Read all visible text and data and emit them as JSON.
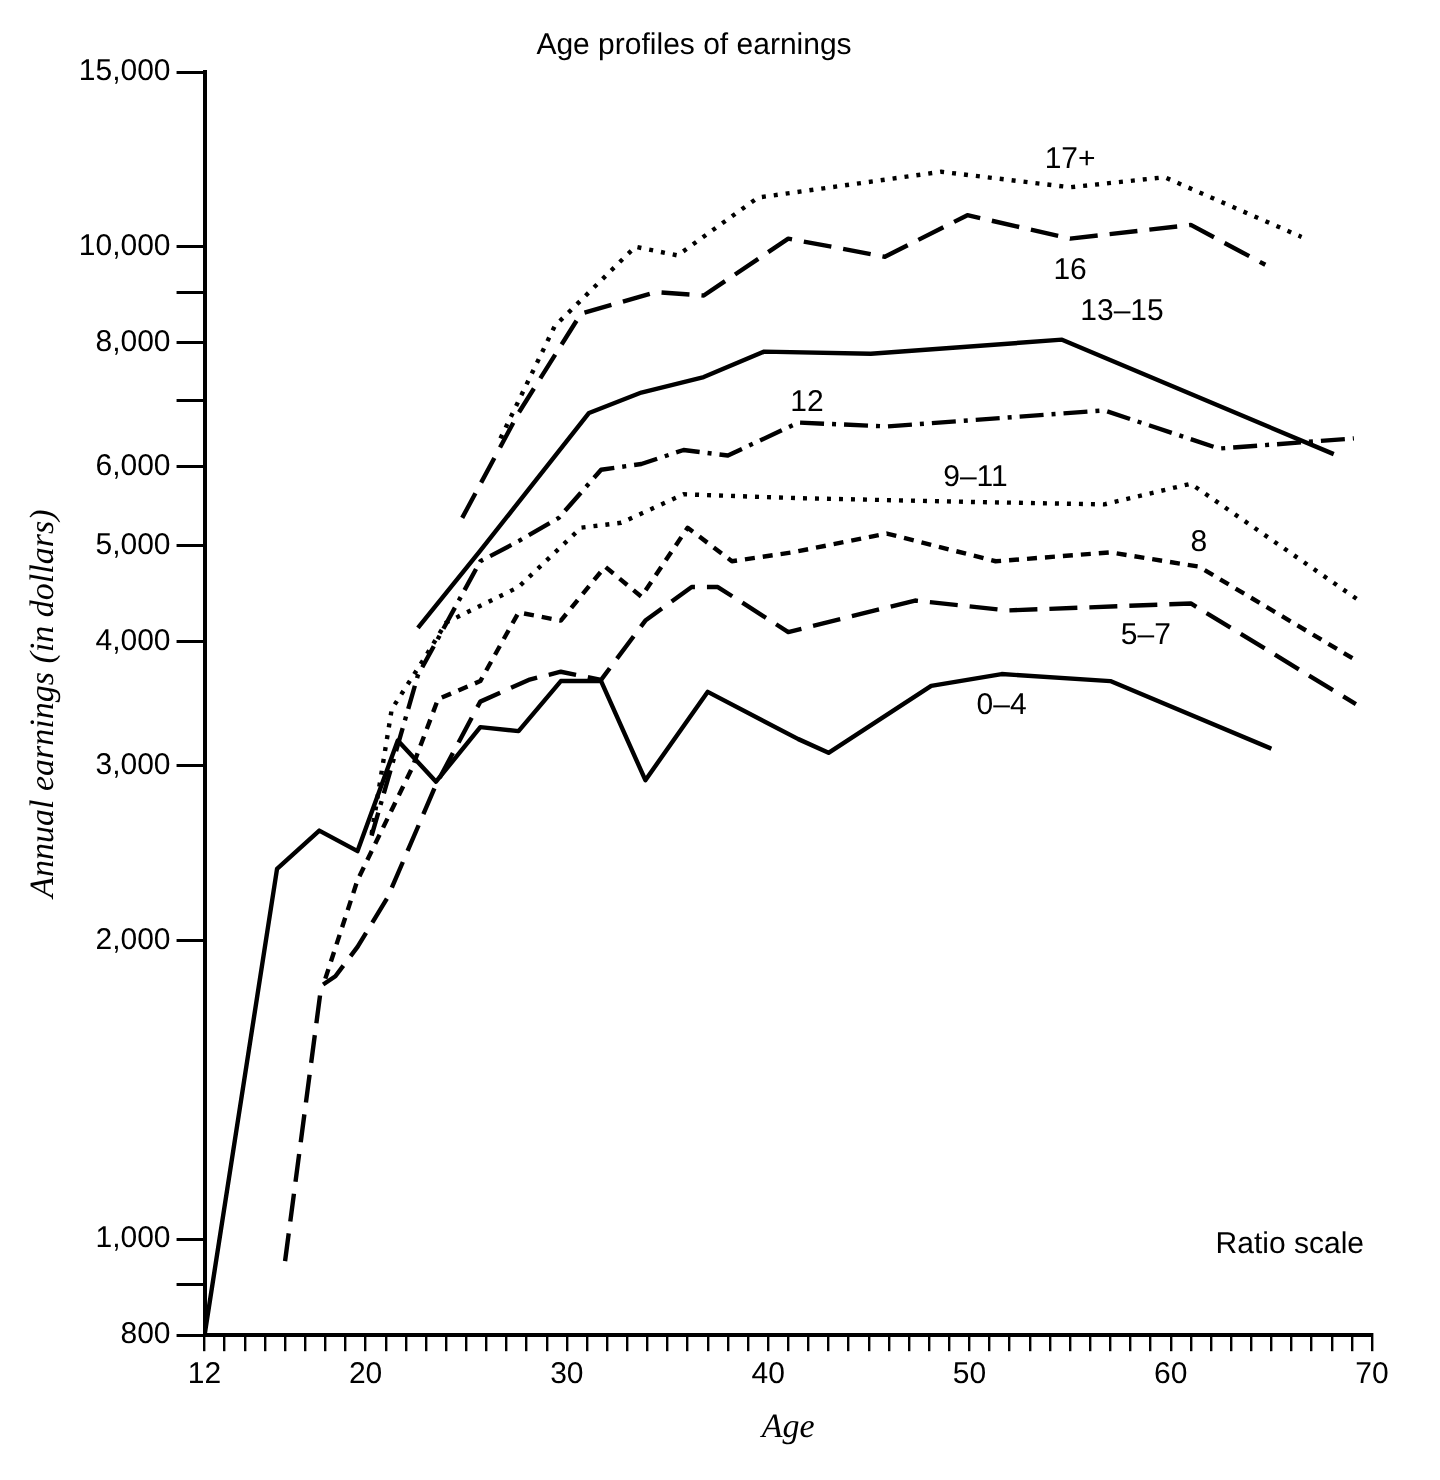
{
  "chart_data": {
    "type": "line",
    "title": "Age profiles of earnings",
    "xlabel": "Age",
    "ylabel": "Annual earnings (in dollars)",
    "annotations": [
      "Ratio scale"
    ],
    "log": "y",
    "grid": false,
    "legend": false,
    "marker": "none",
    "xlim": [
      12,
      70
    ],
    "xticks": [
      12,
      {
        "value": 13,
        "label": null
      },
      {
        "value": 14,
        "label": null
      },
      {
        "value": 15,
        "label": null
      },
      {
        "value": 16,
        "label": null
      },
      {
        "value": 17,
        "label": null
      },
      {
        "value": 18,
        "label": null
      },
      {
        "value": 19,
        "label": null
      },
      20,
      {
        "value": 21,
        "label": null
      },
      {
        "value": 22,
        "label": null
      },
      {
        "value": 23,
        "label": null
      },
      {
        "value": 24,
        "label": null
      },
      {
        "value": 25,
        "label": null
      },
      {
        "value": 26,
        "label": null
      },
      {
        "value": 27,
        "label": null
      },
      {
        "value": 28,
        "label": null
      },
      {
        "value": 29,
        "label": null
      },
      30,
      {
        "value": 31,
        "label": null
      },
      {
        "value": 32,
        "label": null
      },
      {
        "value": 33,
        "label": null
      },
      {
        "value": 34,
        "label": null
      },
      {
        "value": 35,
        "label": null
      },
      {
        "value": 36,
        "label": null
      },
      {
        "value": 37,
        "label": null
      },
      {
        "value": 38,
        "label": null
      },
      {
        "value": 39,
        "label": null
      },
      40,
      {
        "value": 41,
        "label": null
      },
      {
        "value": 42,
        "label": null
      },
      {
        "value": 43,
        "label": null
      },
      {
        "value": 44,
        "label": null
      },
      {
        "value": 45,
        "label": null
      },
      {
        "value": 46,
        "label": null
      },
      {
        "value": 47,
        "label": null
      },
      {
        "value": 48,
        "label": null
      },
      {
        "value": 49,
        "label": null
      },
      50,
      {
        "value": 51,
        "label": null
      },
      {
        "value": 52,
        "label": null
      },
      {
        "value": 53,
        "label": null
      },
      {
        "value": 54,
        "label": null
      },
      {
        "value": 55,
        "label": null
      },
      {
        "value": 56,
        "label": null
      },
      {
        "value": 57,
        "label": null
      },
      {
        "value": 58,
        "label": null
      },
      {
        "value": 59,
        "label": null
      },
      60,
      {
        "value": 61,
        "label": null
      },
      {
        "value": 62,
        "label": null
      },
      {
        "value": 63,
        "label": null
      },
      {
        "value": 64,
        "label": null
      },
      {
        "value": 65,
        "label": null
      },
      {
        "value": 66,
        "label": null
      },
      {
        "value": 67,
        "label": null
      },
      {
        "value": 68,
        "label": null
      },
      {
        "value": 69,
        "label": null
      },
      70
    ],
    "ylim": [
      800,
      15000
    ],
    "yticks": [
      {
        "value": 800,
        "label": "800"
      },
      {
        "value": 900,
        "label": null
      },
      {
        "value": 1000,
        "label": "1,000"
      },
      {
        "value": 2000,
        "label": "2,000"
      },
      {
        "value": 3000,
        "label": "3,000"
      },
      {
        "value": 4000,
        "label": "4,000"
      },
      {
        "value": 5000,
        "label": "5,000"
      },
      {
        "value": 6000,
        "label": "6,000"
      },
      {
        "value": 7000,
        "label": null
      },
      {
        "value": 8000,
        "label": "8,000"
      },
      {
        "value": 9000,
        "label": null
      },
      {
        "value": 10000,
        "label": "10,000"
      },
      {
        "value": 15000,
        "label": "15,000"
      }
    ],
    "series": [
      {
        "name": "0–4",
        "color": "#000000",
        "line_style": "solid",
        "x": [
          12,
          15.6,
          17.7,
          19.6,
          21.6,
          23.5,
          25.7,
          27.6,
          29.7,
          31.7,
          33.9,
          37,
          41.5,
          43,
          48.1,
          51.6,
          57,
          65
        ],
        "values": [
          800,
          2360,
          2580,
          2460,
          3180,
          2890,
          3280,
          3250,
          3650,
          3650,
          2900,
          3560,
          3190,
          3090,
          3610,
          3710,
          3650,
          3120
        ]
      },
      {
        "name": "5–7",
        "color": "#000000",
        "line_style": "dashed",
        "x": [
          16,
          17.8,
          18.5,
          19.6,
          21.1,
          23.5,
          25.7,
          28.1,
          29.7,
          31.7,
          33.9,
          36.2,
          37.5,
          41,
          47.3,
          51.9,
          61,
          69.2
        ],
        "values": [
          950,
          1800,
          1840,
          1970,
          2210,
          2870,
          3480,
          3660,
          3730,
          3660,
          4200,
          4540,
          4540,
          4090,
          4400,
          4300,
          4370,
          3460
        ]
      },
      {
        "name": "8",
        "color": "#000000",
        "line_style": "dashed",
        "x": [
          18,
          19.6,
          22.3,
          23.6,
          25.7,
          27.6,
          29.7,
          31.9,
          33.7,
          36,
          38.2,
          41.2,
          45.9,
          51.3,
          57,
          61.4,
          69.3
        ],
        "values": [
          1830,
          2300,
          2980,
          3500,
          3650,
          4280,
          4200,
          4760,
          4440,
          5210,
          4820,
          4920,
          5140,
          4820,
          4920,
          4760,
          3820
        ]
      },
      {
        "name": "9–11",
        "color": "#000000",
        "line_style": "dotted",
        "x": [
          20.3,
          21.3,
          23,
          24,
          27.6,
          30.7,
          32.7,
          35.8,
          41.5,
          50.3,
          56.7,
          61,
          69.5
        ],
        "values": [
          2560,
          3420,
          3870,
          4180,
          4540,
          5210,
          5270,
          5630,
          5580,
          5530,
          5500,
          5770,
          4380
        ]
      },
      {
        "name": "12",
        "color": "#000000",
        "line_style": "dashed",
        "x": [
          20.3,
          22.6,
          25.7,
          27.6,
          29.6,
          31.7,
          33.7,
          35.8,
          38,
          41.5,
          45.9,
          56.7,
          62.4,
          69.1
        ],
        "values": [
          2550,
          3700,
          4820,
          5050,
          5330,
          5960,
          6040,
          6240,
          6160,
          6650,
          6590,
          6840,
          6260,
          6410
        ]
      },
      {
        "name": "13–15",
        "color": "#000000",
        "line_style": "solid",
        "x": [
          22.6,
          25.7,
          31.1,
          33.7,
          36.8,
          39.8,
          45.1,
          54.6,
          68.1
        ],
        "values": [
          4130,
          4940,
          6800,
          7130,
          7390,
          7840,
          7800,
          8060,
          6180
        ]
      },
      {
        "name": "16",
        "color": "#000000",
        "line_style": "dashed",
        "x": [
          24.8,
          27.6,
          30.7,
          34.4,
          36.8,
          41,
          45.8,
          49.9,
          55,
          61,
          64.7
        ],
        "values": [
          5330,
          6800,
          8560,
          9000,
          8930,
          10190,
          9770,
          10760,
          10190,
          10520,
          9590
        ]
      },
      {
        "name": "17+",
        "color": "#000000",
        "line_style": "dotted",
        "x": [
          26.7,
          29.4,
          33.4,
          35.5,
          39.5,
          48.6,
          55,
          59.7,
          66.5
        ],
        "values": [
          6410,
          8320,
          10000,
          9800,
          11210,
          11900,
          11480,
          11750,
          10230
        ]
      }
    ]
  }
}
